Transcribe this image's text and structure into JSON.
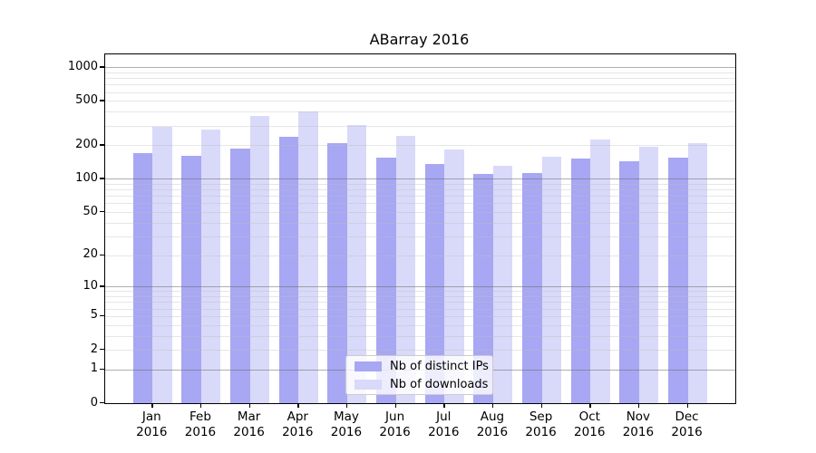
{
  "chart_data": {
    "type": "bar",
    "title": "ABarray 2016",
    "categories": [
      "Jan 2016",
      "Feb 2016",
      "Mar 2016",
      "Apr 2016",
      "May 2016",
      "Jun 2016",
      "Jul 2016",
      "Aug 2016",
      "Sep 2016",
      "Oct 2016",
      "Nov 2016",
      "Dec 2016"
    ],
    "series": [
      {
        "name": "Nb of distinct IPs",
        "color": "#a7a7f3",
        "values": [
          169,
          162,
          188,
          240,
          208,
          155,
          136,
          110,
          112,
          152,
          143,
          155
        ]
      },
      {
        "name": "Nb of downloads",
        "color": "#d9d9f9",
        "values": [
          291,
          276,
          366,
          406,
          303,
          244,
          185,
          130,
          157,
          225,
          196,
          211
        ]
      }
    ],
    "yscale": "log1p",
    "ylim": [
      0,
      1305
    ],
    "yticks": [
      0,
      1,
      2,
      5,
      10,
      20,
      50,
      100,
      200,
      500,
      1000
    ],
    "grid_major_values": [
      1,
      10,
      100,
      1000
    ],
    "grid_minor_subs": [
      2,
      3,
      4,
      5,
      6,
      7,
      8,
      9
    ],
    "grid": "on",
    "legend_position": "lower center",
    "xlabel": "",
    "ylabel": ""
  }
}
